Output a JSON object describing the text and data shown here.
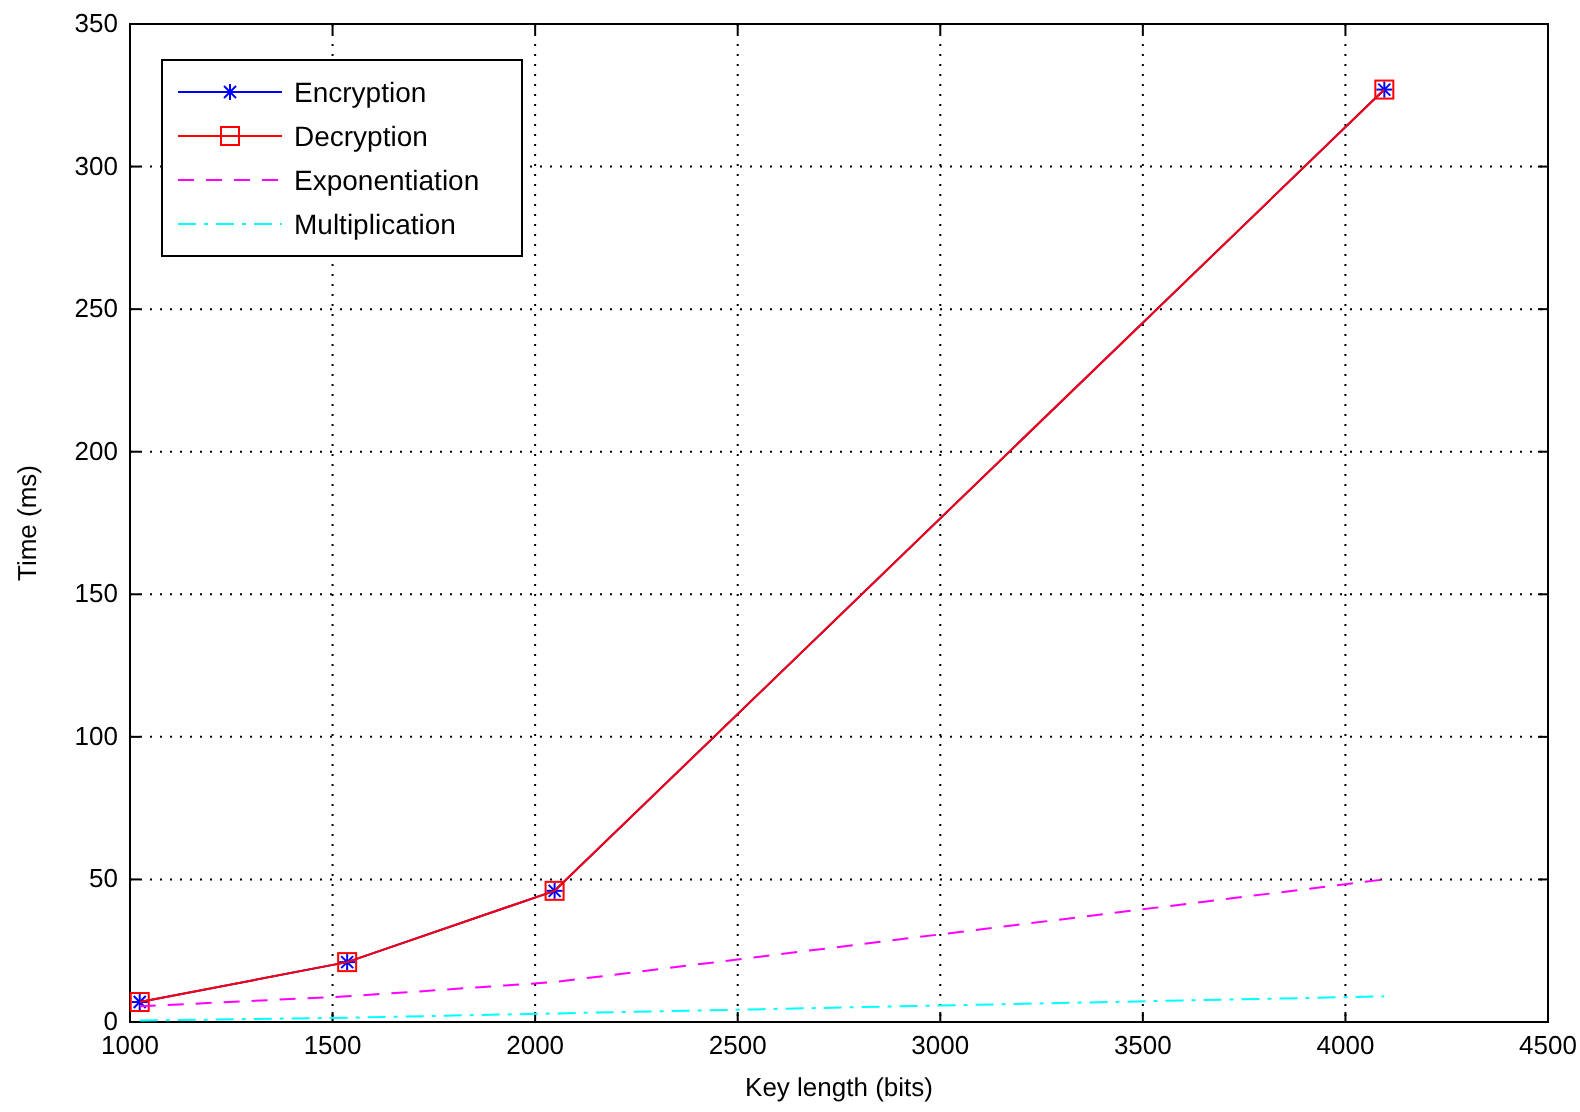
{
  "chart_data": {
    "type": "line",
    "xlabel": "Key length (bits)",
    "ylabel": "Time (ms)",
    "x": [
      1024,
      1536,
      2048,
      4096
    ],
    "series": [
      {
        "name": "Encryption",
        "color": "#0000ff",
        "values": [
          7,
          21,
          46,
          327
        ],
        "marker": "cross",
        "line_style": "solid"
      },
      {
        "name": "Decryption",
        "color": "#ff0000",
        "values": [
          7,
          21,
          46,
          327
        ],
        "marker": "square",
        "line_style": "solid"
      },
      {
        "name": "Exponentiation",
        "color": "#ff00ff",
        "values": [
          5.5,
          9,
          14,
          50
        ],
        "marker": "none",
        "line_style": "dashed"
      },
      {
        "name": "Multiplication",
        "color": "#00ffff",
        "values": [
          0.5,
          1.5,
          3,
          9
        ],
        "marker": "none",
        "line_style": "dashdot"
      }
    ],
    "xlim": [
      1000,
      4500
    ],
    "xticks": [
      1000,
      1500,
      2000,
      2500,
      3000,
      3500,
      4000,
      4500
    ],
    "ylim": [
      0,
      350
    ],
    "yticks": [
      0,
      50,
      100,
      150,
      200,
      250,
      300,
      350
    ],
    "grid": true,
    "legend": "top left"
  }
}
